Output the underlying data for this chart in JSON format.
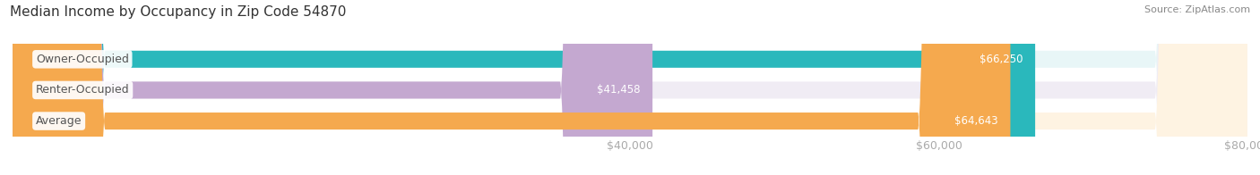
{
  "title": "Median Income by Occupancy in Zip Code 54870",
  "source": "Source: ZipAtlas.com",
  "categories": [
    "Owner-Occupied",
    "Renter-Occupied",
    "Average"
  ],
  "values": [
    66250,
    41458,
    64643
  ],
  "labels": [
    "$66,250",
    "$41,458",
    "$64,643"
  ],
  "bar_colors": [
    "#2ab8bc",
    "#c4a8d0",
    "#f5a94e"
  ],
  "bar_bg_colors": [
    "#e8f6f7",
    "#f0ecf4",
    "#fef3e2"
  ],
  "xlim": [
    0,
    80000
  ],
  "xticks": [
    40000,
    60000,
    80000
  ],
  "xtick_labels": [
    "$40,000",
    "$60,000",
    "$80,000"
  ],
  "bar_height": 0.55,
  "label_fontsize": 9,
  "title_fontsize": 11,
  "source_fontsize": 8,
  "category_fontsize": 9,
  "value_fontsize": 8.5,
  "background_color": "#ffffff",
  "category_text_color": "#555555",
  "grid_color": "#dddddd"
}
